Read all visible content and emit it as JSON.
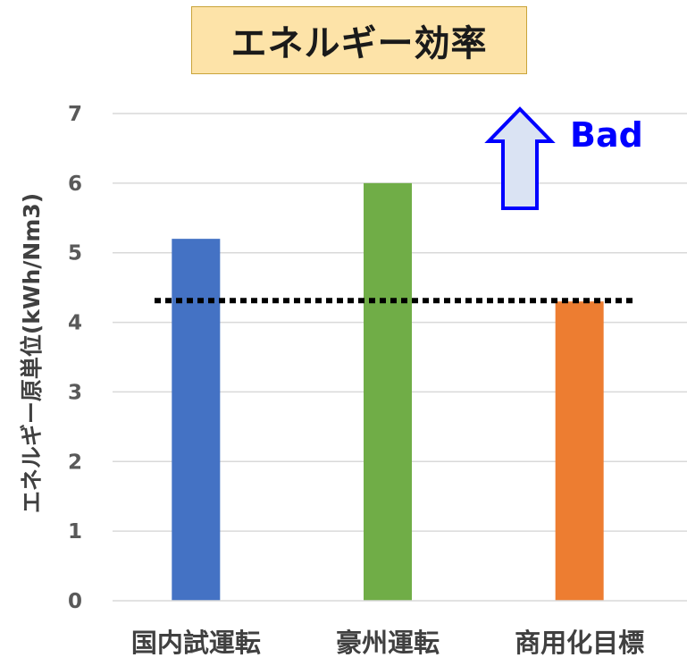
{
  "chart_data": {
    "type": "bar",
    "title": "エネルギー効率",
    "ylabel": "エネルギー原単位(kWh/Nm3)",
    "xlabel": "",
    "categories": [
      "国内試運転",
      "豪州運転",
      "商用化目標"
    ],
    "values": [
      5.2,
      6.0,
      4.3
    ],
    "colors": [
      "#4472c4",
      "#70ad47",
      "#ed7d31"
    ],
    "ylim": [
      0,
      7
    ],
    "yticks": [
      0,
      1,
      2,
      3,
      4,
      5,
      6,
      7
    ],
    "grid": true,
    "reference_line": {
      "value": 4.3,
      "style": "dotted",
      "color": "#000000"
    },
    "annotation": {
      "text": "Bad",
      "arrow": "up",
      "color": "#0000ff"
    }
  }
}
